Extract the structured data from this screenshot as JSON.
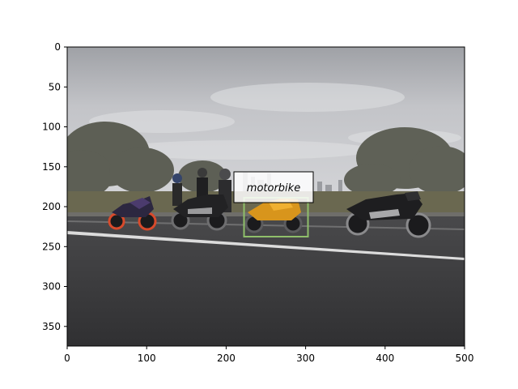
{
  "figure": {
    "x_ticks": [
      "0",
      "100",
      "200",
      "300",
      "400",
      "500"
    ],
    "y_ticks": [
      "0",
      "50",
      "100",
      "150",
      "200",
      "250",
      "300",
      "350"
    ],
    "annotation": {
      "label": "motorbike",
      "box_color": "#8fbf6a"
    }
  },
  "scene": {
    "sky_color": "#c4c5c8",
    "road_color": "#3a3a3c",
    "objects": [
      "motorbike",
      "motorbike",
      "motorbike",
      "motorbike",
      "rider",
      "rider",
      "rider",
      "tree",
      "tree"
    ]
  }
}
